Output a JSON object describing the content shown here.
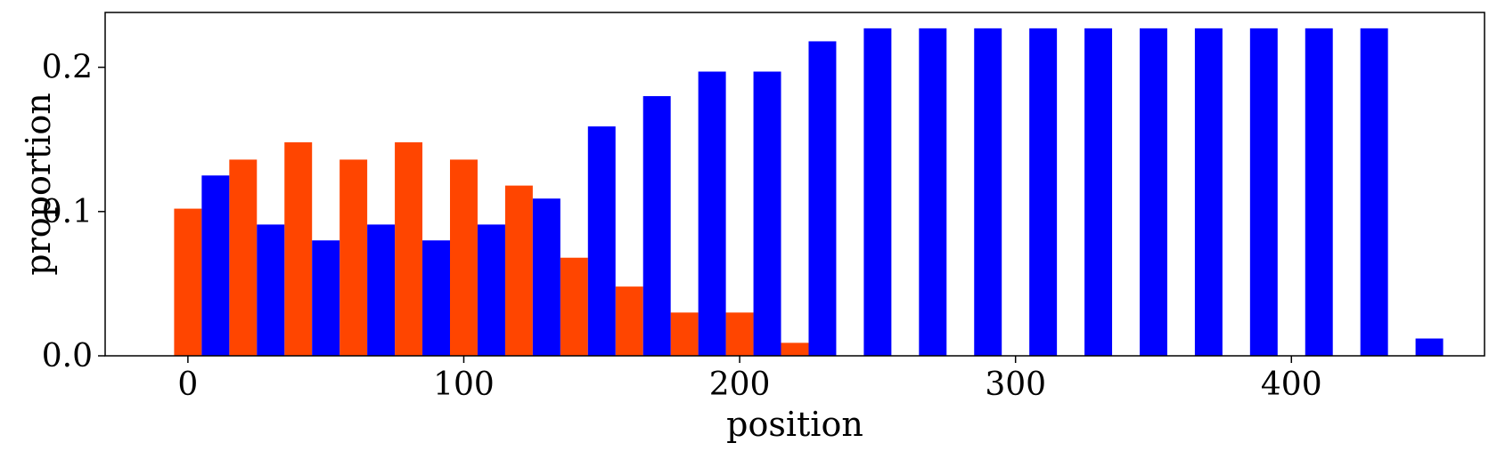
{
  "chart_data": {
    "type": "bar",
    "title": "",
    "xlabel": "position",
    "ylabel": "proportion",
    "xlim": [
      -30,
      470
    ],
    "ylim": [
      0,
      0.238
    ],
    "xticks": [
      0,
      100,
      200,
      300,
      400
    ],
    "xtick_labels": [
      "0",
      "100",
      "200",
      "300",
      "400"
    ],
    "yticks": [
      0.0,
      0.1,
      0.2
    ],
    "ytick_labels": [
      "0.0",
      "0.1",
      "0.2"
    ],
    "bar_width": 10,
    "grid": false,
    "series": [
      {
        "color": "#ff4500",
        "x": [
          0,
          20,
          40,
          60,
          80,
          100,
          120,
          140,
          160,
          180,
          200,
          220
        ],
        "values": [
          0.102,
          0.136,
          0.148,
          0.136,
          0.148,
          0.136,
          0.118,
          0.068,
          0.048,
          0.03,
          0.03,
          0.009
        ]
      },
      {
        "color": "#0000ff",
        "x": [
          10,
          30,
          50,
          70,
          90,
          110,
          130,
          150,
          170,
          190,
          210,
          230,
          250,
          270,
          290,
          310,
          330,
          350,
          370,
          390,
          410,
          430,
          450
        ],
        "values": [
          0.125,
          0.091,
          0.08,
          0.091,
          0.08,
          0.091,
          0.109,
          0.159,
          0.18,
          0.197,
          0.197,
          0.218,
          0.227,
          0.227,
          0.227,
          0.227,
          0.227,
          0.227,
          0.227,
          0.227,
          0.227,
          0.227,
          0.012
        ]
      }
    ]
  }
}
